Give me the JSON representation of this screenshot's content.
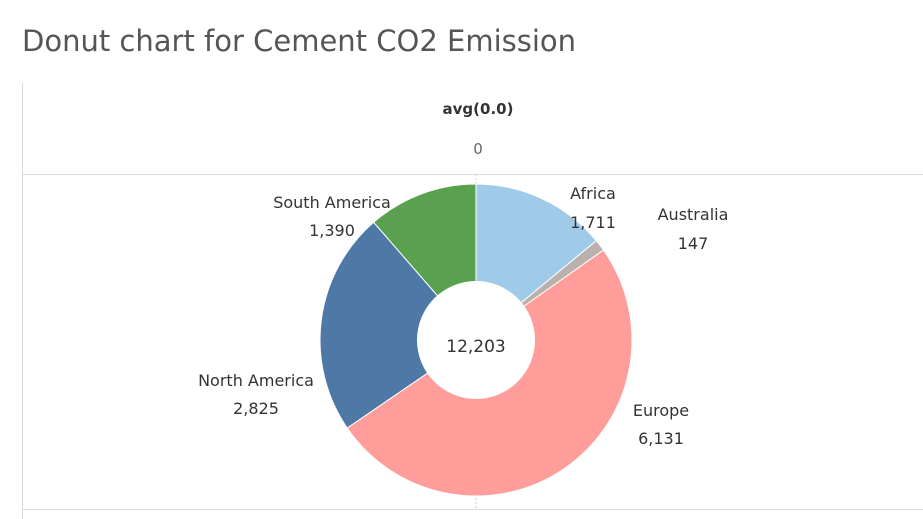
{
  "title": "Donut chart for Cement CO2 Emission",
  "header": {
    "field": "avg(0.0)",
    "value": "0"
  },
  "chart_data": {
    "type": "pie",
    "donut": true,
    "title": "Donut chart for Cement CO2 Emission",
    "total_label": "12,203",
    "slices": [
      {
        "name": "Africa",
        "value": 1711,
        "value_label": "1,711",
        "color": "#a0cbe8"
      },
      {
        "name": "Australia",
        "value": 147,
        "value_label": "147",
        "color": "#bab0ac"
      },
      {
        "name": "Europe",
        "value": 6131,
        "value_label": "6,131",
        "color": "#ff9d9a"
      },
      {
        "name": "North America",
        "value": 2825,
        "value_label": "2,825",
        "color": "#4e79a7"
      },
      {
        "name": "South America",
        "value": 1390,
        "value_label": "1,390",
        "color": "#59a14f"
      }
    ]
  }
}
